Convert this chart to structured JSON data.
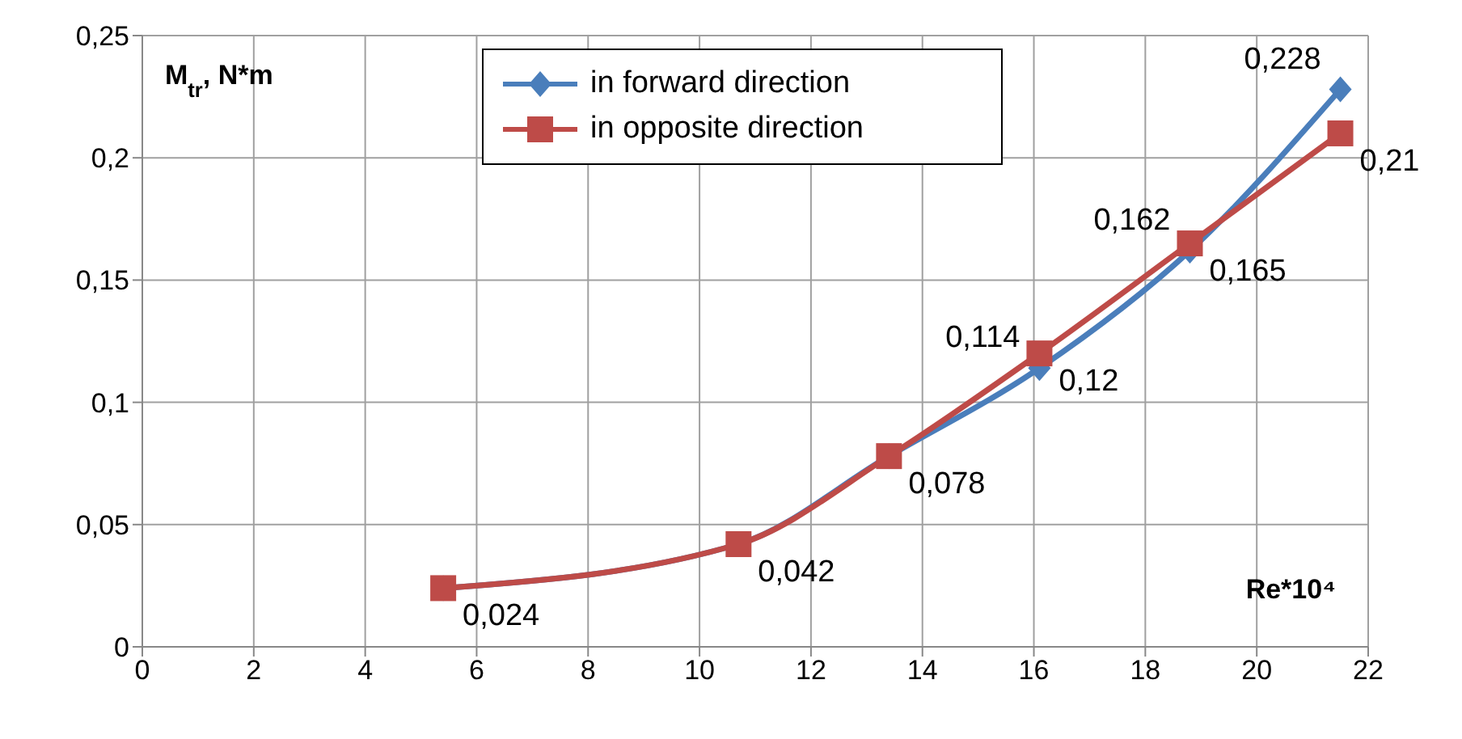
{
  "chart_data": {
    "type": "line",
    "xlabel": "Re*10⁴",
    "ylabel": "M$_{tr}$, N*m",
    "xlim": [
      0,
      22
    ],
    "xticks": [
      0,
      2,
      4,
      6,
      8,
      10,
      12,
      14,
      16,
      18,
      20,
      22
    ],
    "ylim": [
      0,
      0.25
    ],
    "yticks": [
      0,
      {
        "value": 0.05,
        "label": "0,05"
      },
      {
        "value": 0.1,
        "label": "0,1"
      },
      {
        "value": 0.15,
        "label": "0,15"
      },
      {
        "value": 0.2,
        "label": "0,2"
      },
      {
        "value": 0.25,
        "label": "0,25"
      }
    ],
    "grid": true,
    "legend": "top",
    "line_style": "solid",
    "x": [
      5.4,
      10.7,
      13.4,
      16.1,
      18.8,
      21.5
    ],
    "series": [
      {
        "name": "in forward direction",
        "color": "#4a7ebb",
        "marker": "diamond",
        "values": [
          0.024,
          0.042,
          0.078,
          0.114,
          0.162,
          0.228
        ],
        "value_labels": [
          null,
          null,
          null,
          "0,114",
          "0,162",
          "0,228"
        ]
      },
      {
        "name": "in opposite direction",
        "color": "#be4b48",
        "marker": "square",
        "values": [
          0.024,
          0.042,
          0.078,
          0.12,
          0.165,
          0.21
        ],
        "value_labels": [
          "0,024",
          "0,042",
          "0,078",
          "0,12",
          "0,165",
          "0,21"
        ]
      }
    ]
  }
}
